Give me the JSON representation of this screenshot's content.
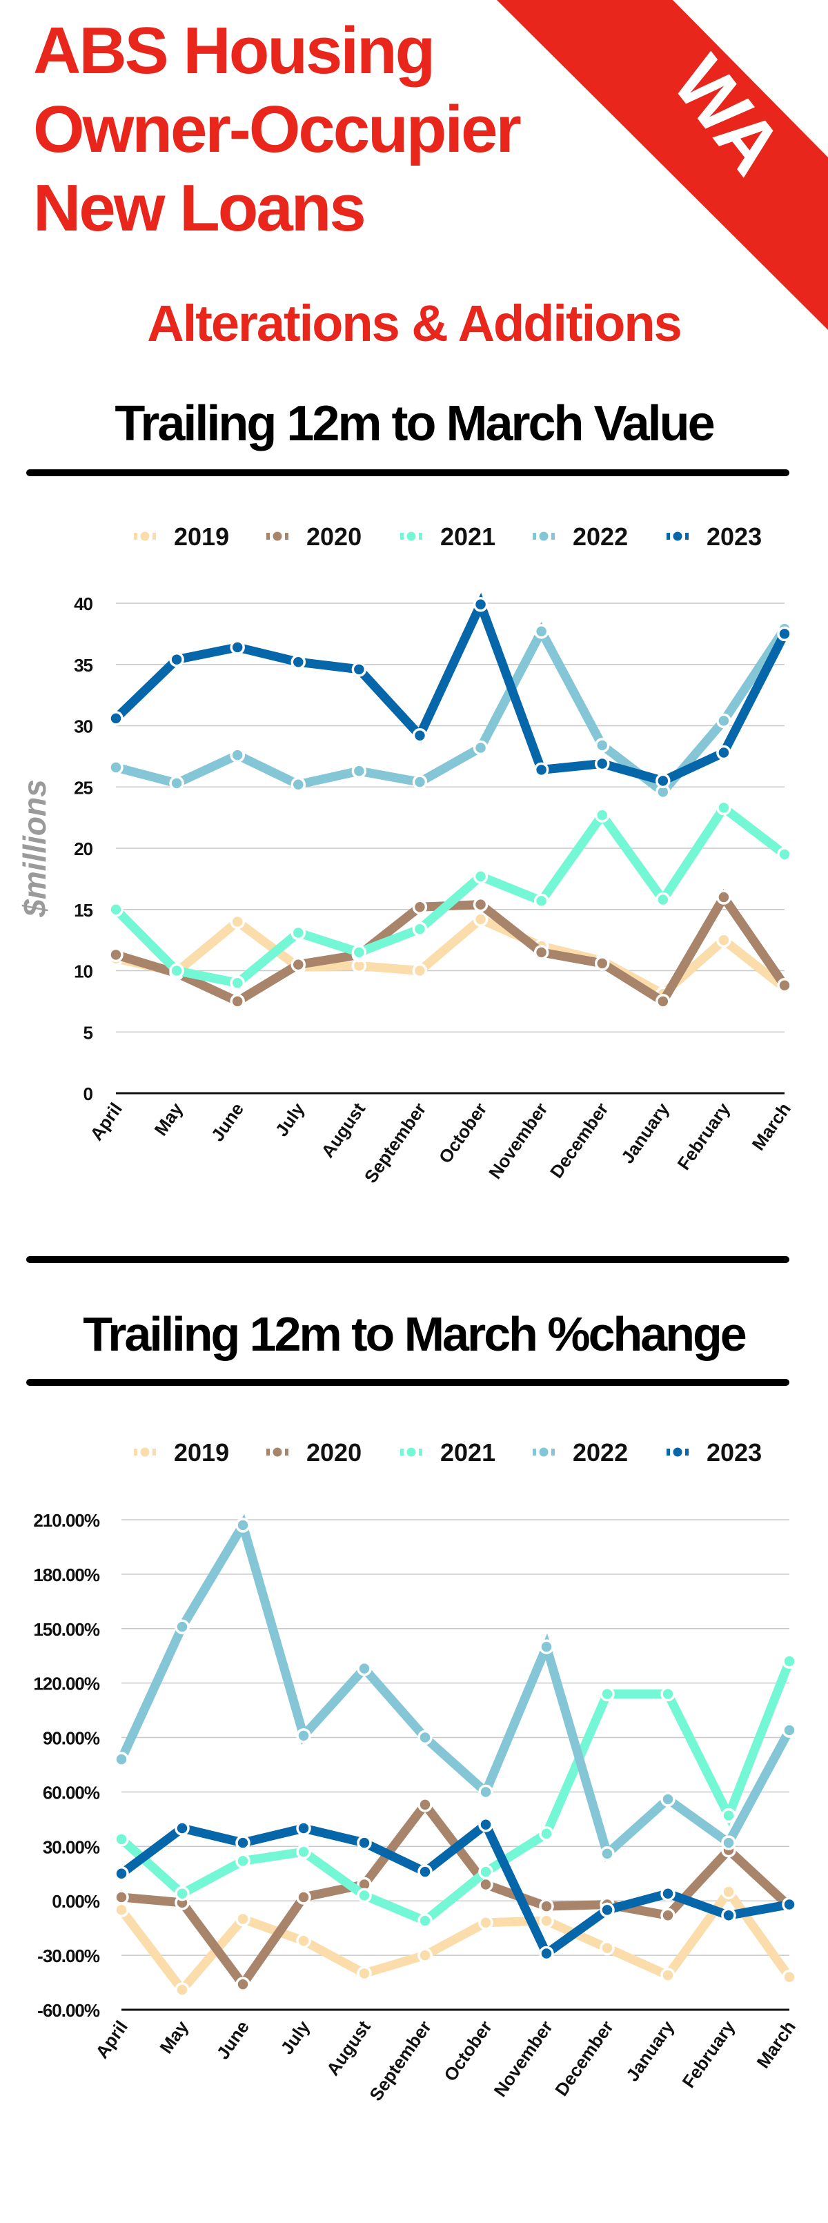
{
  "header": {
    "title_lines": [
      "ABS Housing",
      "Owner-Occupier",
      "New Loans"
    ],
    "region_badge": "WA",
    "subtitle": "Alterations & Additions",
    "accent_color": "#e8261b"
  },
  "chart_data": [
    {
      "type": "line",
      "title": "Trailing 12m to March Value",
      "xlabel": "",
      "ylabel": "$millions",
      "ylim": [
        0,
        40
      ],
      "yticks": [
        0,
        5,
        10,
        15,
        20,
        25,
        30,
        35,
        40
      ],
      "ytick_labels": [
        "0",
        "5",
        "10",
        "15",
        "20",
        "25",
        "30",
        "35",
        "40"
      ],
      "grid": true,
      "legend": "top",
      "categories": [
        "April",
        "May",
        "June",
        "July",
        "August",
        "September",
        "October",
        "November",
        "December",
        "January",
        "February",
        "March"
      ],
      "series": [
        {
          "name": "2019",
          "color": "#fbdcab",
          "values": [
            11.0,
            9.9,
            14.0,
            10.3,
            10.4,
            10.0,
            14.2,
            12.0,
            10.8,
            8.1,
            12.5,
            8.6
          ]
        },
        {
          "name": "2020",
          "color": "#a8846a",
          "values": [
            11.3,
            9.8,
            7.5,
            10.5,
            11.3,
            15.2,
            15.4,
            11.5,
            10.6,
            7.5,
            16.0,
            8.8
          ]
        },
        {
          "name": "2021",
          "color": "#74f7d5",
          "values": [
            15.0,
            10.0,
            9.0,
            13.1,
            11.5,
            13.4,
            17.7,
            15.7,
            22.7,
            15.8,
            23.3,
            19.5
          ]
        },
        {
          "name": "2022",
          "color": "#84c6d5",
          "values": [
            26.6,
            25.3,
            27.6,
            25.2,
            26.3,
            25.4,
            28.2,
            37.7,
            28.4,
            24.6,
            30.4,
            37.9
          ]
        },
        {
          "name": "2023",
          "color": "#0566aa",
          "values": [
            30.6,
            35.4,
            36.4,
            35.2,
            34.6,
            29.2,
            39.9,
            26.4,
            26.9,
            25.5,
            27.8,
            37.5
          ]
        }
      ]
    },
    {
      "type": "line",
      "title": "Trailing 12m to March %change",
      "xlabel": "",
      "ylabel": "",
      "ylim": [
        -60,
        210
      ],
      "yticks": [
        -60,
        -30,
        0,
        30,
        60,
        90,
        120,
        150,
        180,
        210
      ],
      "ytick_labels": [
        "-60.00%",
        "-30.00%",
        "0.00%",
        "30.00%",
        "60.00%",
        "90.00%",
        "120.00%",
        "150.00%",
        "180.00%",
        "210.00%"
      ],
      "grid": true,
      "legend": "top",
      "categories": [
        "April",
        "May",
        "June",
        "July",
        "August",
        "September",
        "October",
        "November",
        "December",
        "January",
        "February",
        "March"
      ],
      "series": [
        {
          "name": "2019",
          "color": "#fbdcab",
          "values": [
            -5,
            -49,
            -10,
            -22,
            -40,
            -30,
            -12,
            -11,
            -26,
            -41,
            5,
            -42
          ]
        },
        {
          "name": "2020",
          "color": "#a8846a",
          "values": [
            2,
            -1,
            -46,
            2,
            9,
            53,
            9,
            -3,
            -2,
            -8,
            28,
            -3
          ]
        },
        {
          "name": "2021",
          "color": "#74f7d5",
          "values": [
            34,
            4,
            22,
            27,
            3,
            -11,
            16,
            37,
            114,
            114,
            47,
            132
          ]
        },
        {
          "name": "2022",
          "color": "#84c6d5",
          "values": [
            78,
            151,
            207,
            91,
            128,
            90,
            60,
            140,
            26,
            56,
            32,
            94
          ]
        },
        {
          "name": "2023",
          "color": "#0566aa",
          "values": [
            15,
            40,
            32,
            40,
            32,
            16,
            42,
            -29,
            -5,
            4,
            -8,
            -2
          ]
        }
      ]
    }
  ]
}
